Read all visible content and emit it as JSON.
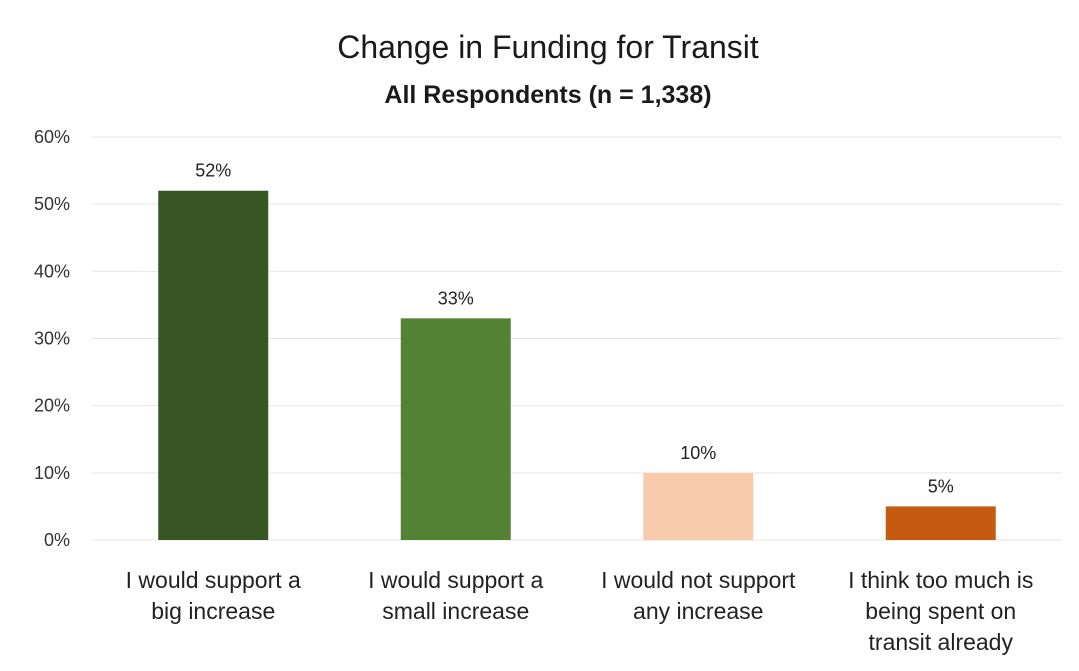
{
  "chart_data": {
    "type": "bar",
    "title": "Change in Funding for Transit",
    "subtitle": "All Respondents (n = 1,338)",
    "categories": [
      [
        "I would support a",
        "big increase"
      ],
      [
        "I would support a",
        "small increase"
      ],
      [
        "I would not support",
        "any increase"
      ],
      [
        "I think too much is",
        "being spent on",
        "transit already"
      ]
    ],
    "values": [
      52,
      33,
      10,
      5
    ],
    "data_labels": [
      "52%",
      "33%",
      "10%",
      "5%"
    ],
    "colors": [
      "#375623",
      "#548235",
      "#f8cbad",
      "#c55a11"
    ],
    "ylim": [
      0,
      60
    ],
    "yticks": [
      0,
      10,
      20,
      30,
      40,
      50,
      60
    ],
    "ytick_labels": [
      "0%",
      "10%",
      "20%",
      "30%",
      "40%",
      "50%",
      "60%"
    ],
    "grid": true,
    "legend": false
  }
}
